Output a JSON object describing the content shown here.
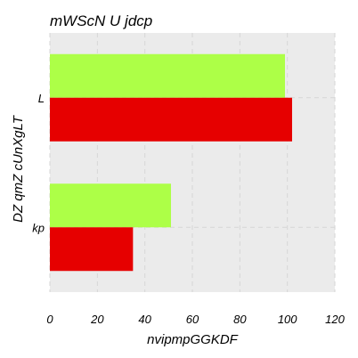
{
  "chart_data": {
    "type": "bar",
    "orientation": "horizontal",
    "title": "mWScN U jdcp",
    "xlabel": "nvipmpGGKDF",
    "ylabel": "DZ qmZ cUnXgLT",
    "categories": [
      "L",
      "kp"
    ],
    "series": [
      {
        "values": [
          99,
          51
        ],
        "color": "#adff47"
      },
      {
        "values": [
          102,
          35
        ],
        "color": "#e60000"
      }
    ],
    "xlim": [
      0,
      120
    ],
    "xticks": [
      0,
      20,
      40,
      60,
      80,
      100,
      120
    ],
    "grid": true,
    "background": "#ebebeb"
  }
}
